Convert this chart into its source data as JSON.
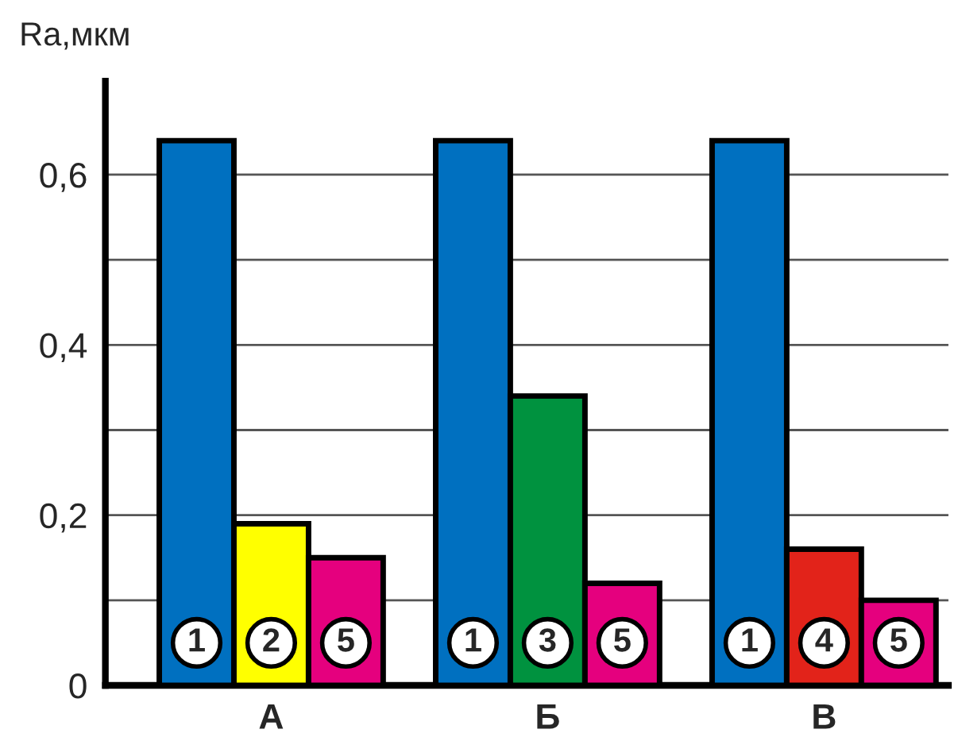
{
  "chart_data": {
    "type": "bar",
    "ylabel": "Ra,мкм",
    "categories": [
      "А",
      "Б",
      "В"
    ],
    "series": [
      {
        "colors": [
          "#0070c0",
          "#0070c0",
          "#0070c0"
        ],
        "values": [
          0.64,
          0.64,
          0.64
        ]
      },
      {
        "colors": [
          "#ffff00",
          "#00923f",
          "#e2231a"
        ],
        "values": [
          0.19,
          0.34,
          0.16
        ]
      },
      {
        "colors": [
          "#e5007e",
          "#e5007e",
          "#e5007e"
        ],
        "values": [
          0.15,
          0.12,
          0.1
        ]
      }
    ],
    "annotations": [
      "1",
      "2",
      "5",
      "1",
      "3",
      "5",
      "1",
      "4",
      "5"
    ],
    "ylim": [
      0,
      0.71
    ],
    "yticks": [
      {
        "value": 0,
        "label": "0"
      },
      {
        "value": 0.1,
        "label": null
      },
      {
        "value": 0.2,
        "label": "0,2"
      },
      {
        "value": 0.3,
        "label": null
      },
      {
        "value": 0.4,
        "label": "0,4"
      },
      {
        "value": 0.5,
        "label": null
      },
      {
        "value": 0.6,
        "label": "0,6"
      }
    ],
    "grid": "y",
    "legend": false
  }
}
